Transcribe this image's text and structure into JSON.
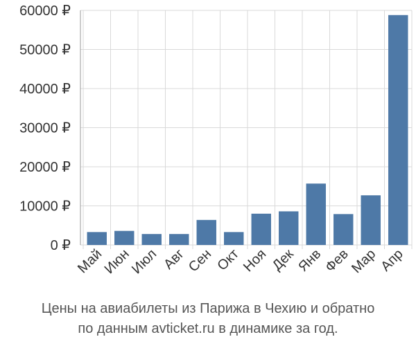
{
  "chart_data": {
    "type": "bar",
    "categories": [
      "Май",
      "Июн",
      "Июл",
      "Авг",
      "Сен",
      "Окт",
      "Ноя",
      "Дек",
      "Янв",
      "Фев",
      "Мар",
      "Апр"
    ],
    "values": [
      3300,
      3600,
      2800,
      2800,
      6400,
      3300,
      8000,
      8600,
      15700,
      7900,
      12700,
      58800
    ],
    "ylim": [
      0,
      60000
    ],
    "yticks": [
      0,
      10000,
      20000,
      30000,
      40000,
      50000,
      60000
    ],
    "ytick_labels": [
      "0 ₽",
      "10000 ₽",
      "20000 ₽",
      "30000 ₽",
      "40000 ₽",
      "50000 ₽",
      "60000 ₽"
    ],
    "grid": true,
    "bar_color": "#4e79a7",
    "grid_color": "#d9d9d9"
  },
  "caption": {
    "line1": "Цены на авиабилеты из Парижа в Чехию и обратно",
    "line2": "по данным avticket.ru в динамике за год."
  }
}
